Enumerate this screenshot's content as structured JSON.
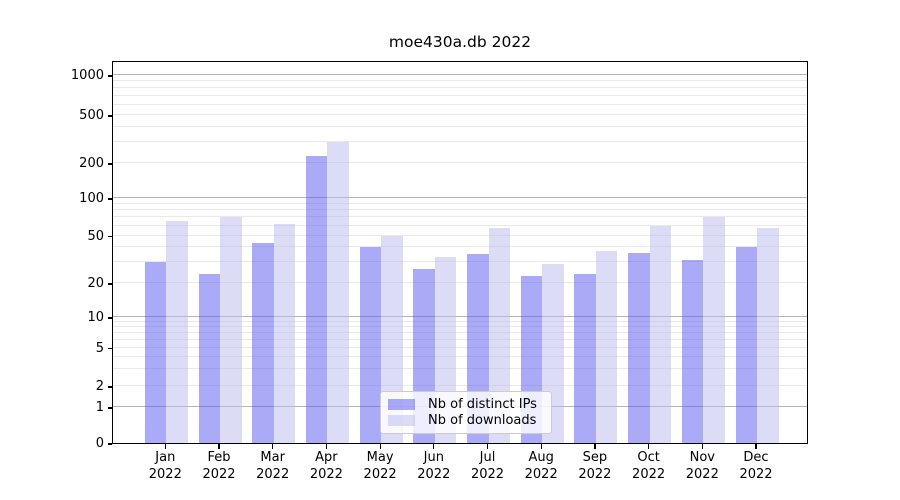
{
  "title": "moe430a.db 2022",
  "legend": {
    "items": [
      {
        "label": "Nb of distinct IPs",
        "color": "rgba(85,85,240,0.5)"
      },
      {
        "label": "Nb of downloads",
        "color": "rgba(185,185,240,0.5)"
      }
    ]
  },
  "y_axis": {
    "tick_labels": [
      "0",
      "1",
      "2",
      "5",
      "10",
      "20",
      "50",
      "100",
      "200",
      "500",
      "1000"
    ]
  },
  "x_axis": {
    "labels": [
      {
        "month": "Jan",
        "year": "2022"
      },
      {
        "month": "Feb",
        "year": "2022"
      },
      {
        "month": "Mar",
        "year": "2022"
      },
      {
        "month": "Apr",
        "year": "2022"
      },
      {
        "month": "May",
        "year": "2022"
      },
      {
        "month": "Jun",
        "year": "2022"
      },
      {
        "month": "Jul",
        "year": "2022"
      },
      {
        "month": "Aug",
        "year": "2022"
      },
      {
        "month": "Sep",
        "year": "2022"
      },
      {
        "month": "Oct",
        "year": "2022"
      },
      {
        "month": "Nov",
        "year": "2022"
      },
      {
        "month": "Dec",
        "year": "2022"
      }
    ]
  },
  "chart_data": {
    "type": "bar",
    "title": "moe430a.db 2022",
    "categories": [
      "Jan 2022",
      "Feb 2022",
      "Mar 2022",
      "Apr 2022",
      "May 2022",
      "Jun 2022",
      "Jul 2022",
      "Aug 2022",
      "Sep 2022",
      "Oct 2022",
      "Nov 2022",
      "Dec 2022"
    ],
    "series": [
      {
        "name": "Nb of distinct IPs",
        "color": "rgba(85,85,240,0.5)",
        "values": [
          30,
          24,
          43,
          230,
          40,
          26,
          35,
          23,
          24,
          36,
          31,
          40
        ]
      },
      {
        "name": "Nb of downloads",
        "color": "rgba(185,185,240,0.5)",
        "values": [
          66,
          70,
          62,
          300,
          50,
          33,
          58,
          29,
          37,
          60,
          70,
          57
        ]
      }
    ],
    "xlabel": "",
    "ylabel": "",
    "yscale": "symlog",
    "yticks": [
      0,
      1,
      2,
      5,
      10,
      20,
      50,
      100,
      200,
      500,
      1000
    ],
    "ylim": [
      0,
      1300
    ],
    "grid": true,
    "legend_position": "lower center"
  }
}
